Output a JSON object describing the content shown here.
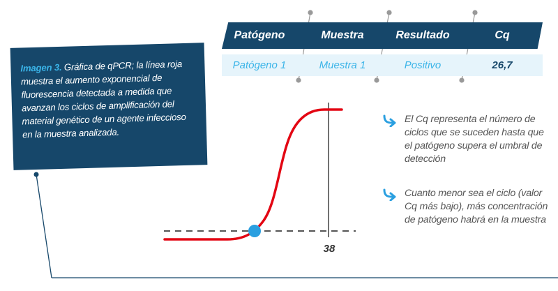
{
  "caption": {
    "title": "Imagen 3.",
    "text": "Gráfica de qPCR; la línea roja muestra el aumento exponencial de fluorescencia detectada a medida que avanzan los ciclos de amplificación del material genético de un agente infeccioso en la muestra analizada."
  },
  "table": {
    "headers": [
      "Patógeno",
      "Muestra",
      "Resultado",
      "Cq"
    ],
    "row": [
      "Patógeno 1",
      "Muestra 1",
      "Positivo",
      "26,7"
    ]
  },
  "chart": {
    "cycle_tick": "38"
  },
  "notes": [
    "El Cq representa el número de ciclos que se suceden hasta que el patógeno supera el umbral de detección",
    "Cuanto menor sea el ciclo (valor Cq más bajo), más concentración de patógeno habrá en la muestra"
  ],
  "colors": {
    "navy": "#16476a",
    "accent_blue": "#3ab4e8",
    "curve_red": "#e30613",
    "row_bg": "#e6f4fb"
  },
  "icons": [
    "curved-arrow-icon"
  ]
}
